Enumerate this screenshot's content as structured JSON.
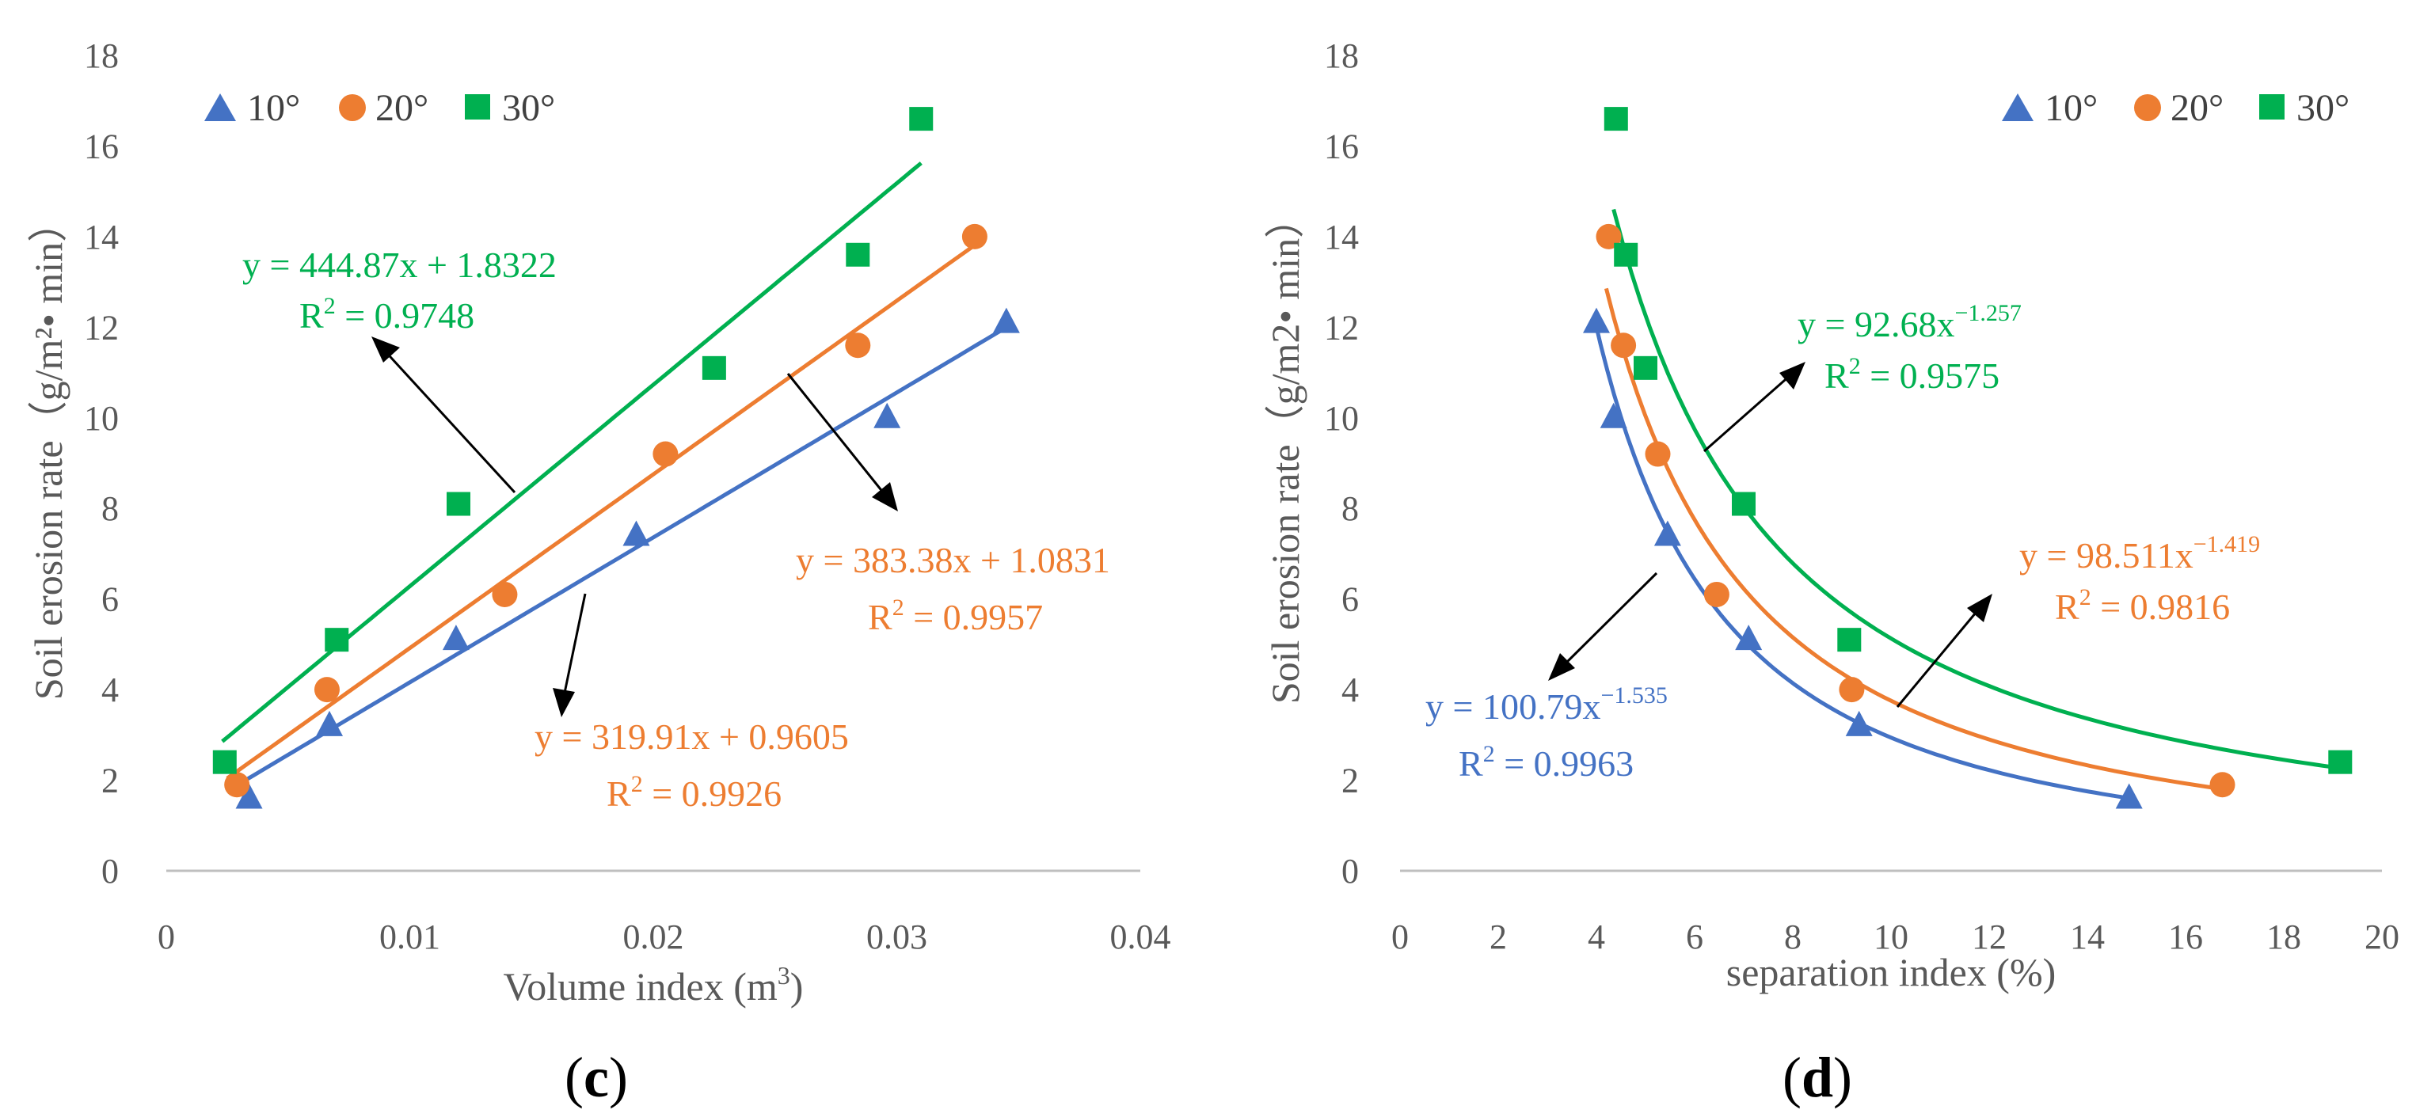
{
  "figure": {
    "colors": {
      "series_10": "#4472c4",
      "series_20": "#ed7d31",
      "series_30": "#00b050",
      "axis": "#bfbfbf",
      "text": "#595959"
    }
  },
  "chart_data": [
    {
      "type": "scatter",
      "panel_label": {
        "open": "(",
        "letter": "c",
        "close": ")"
      },
      "xlabel": "Volume index (m",
      "xlabel_sup": "3",
      "xlabel_close": ")",
      "ylabel": "Soil erosion rate（g/m²• min）",
      "xlim": [
        0,
        0.04
      ],
      "ylim": [
        0,
        18
      ],
      "x_ticks": [
        "0",
        "0.01",
        "0.02",
        "0.03",
        "0.04"
      ],
      "y_ticks": [
        "0",
        "2",
        "4",
        "6",
        "8",
        "10",
        "12",
        "14",
        "16",
        "18"
      ],
      "legend": {
        "position": "top-left",
        "entries": [
          "10°",
          "20°",
          "30°"
        ]
      },
      "series": [
        {
          "name": "10°",
          "marker": "triangle",
          "color": "#4472c4",
          "points": [
            [
              0.0034,
              1.6
            ],
            [
              0.0067,
              3.2
            ],
            [
              0.0119,
              5.1
            ],
            [
              0.0193,
              7.4
            ],
            [
              0.0296,
              10.0
            ],
            [
              0.0345,
              12.1
            ]
          ],
          "fit": {
            "kind": "linear",
            "a": 319.91,
            "b": 0.9605,
            "x_range": [
              0.0028,
              0.0345
            ]
          },
          "equation": "y = 319.91x + 0.9605",
          "r2_prefix": "R",
          "r2_sup": "2",
          "r2_value": " = 0.9926"
        },
        {
          "name": "20°",
          "marker": "circle",
          "color": "#ed7d31",
          "points": [
            [
              0.0029,
              1.9
            ],
            [
              0.0066,
              4.0
            ],
            [
              0.0139,
              6.1
            ],
            [
              0.0205,
              9.2
            ],
            [
              0.0284,
              11.6
            ],
            [
              0.0332,
              14.0
            ]
          ],
          "fit": {
            "kind": "linear",
            "a": 383.38,
            "b": 1.0831,
            "x_range": [
              0.0025,
              0.0332
            ]
          },
          "equation": "y = 383.38x + 1.0831",
          "r2_prefix": "R",
          "r2_sup": "2",
          "r2_value": " = 0.9957"
        },
        {
          "name": "30°",
          "marker": "square",
          "color": "#00b050",
          "points": [
            [
              0.0024,
              2.4
            ],
            [
              0.007,
              5.1
            ],
            [
              0.012,
              8.1
            ],
            [
              0.0225,
              11.1
            ],
            [
              0.0284,
              13.6
            ],
            [
              0.031,
              16.6
            ]
          ],
          "fit": {
            "kind": "linear",
            "a": 444.87,
            "b": 1.8322,
            "x_range": [
              0.0023,
              0.031
            ]
          },
          "equation": "y = 444.87x + 1.8322",
          "r2_prefix": "R",
          "r2_sup": "2",
          "r2_value": " = 0.9748"
        }
      ]
    },
    {
      "type": "scatter",
      "panel_label": {
        "open": "(",
        "letter": "d",
        "close": ")"
      },
      "xlabel": "separation index (%)",
      "ylabel": "Soil erosion rate（g/m2• min）",
      "xlim": [
        0,
        20
      ],
      "ylim": [
        0,
        18
      ],
      "x_ticks": [
        "0",
        "2",
        "4",
        "6",
        "8",
        "10",
        "12",
        "14",
        "16",
        "18",
        "20"
      ],
      "y_ticks": [
        "0",
        "2",
        "4",
        "6",
        "8",
        "10",
        "12",
        "14",
        "16",
        "18"
      ],
      "legend": {
        "position": "top-right",
        "entries": [
          "10°",
          "20°",
          "30°"
        ]
      },
      "series": [
        {
          "name": "10°",
          "marker": "triangle",
          "color": "#4472c4",
          "points": [
            [
              4.0,
              12.1
            ],
            [
              4.35,
              10.0
            ],
            [
              5.45,
              7.4
            ],
            [
              7.1,
              5.1
            ],
            [
              9.35,
              3.2
            ],
            [
              14.85,
              1.6
            ]
          ],
          "fit": {
            "kind": "power",
            "a": 100.79,
            "b": -1.535,
            "x_range": [
              3.95,
              14.85
            ]
          },
          "equation": "y = 100.79x",
          "equation_sup": "−1.535",
          "r2_prefix": "R",
          "r2_sup": "2",
          "r2_value": " = 0.9963"
        },
        {
          "name": "20°",
          "marker": "circle",
          "color": "#ed7d31",
          "points": [
            [
              4.25,
              14.0
            ],
            [
              4.55,
              11.6
            ],
            [
              5.25,
              9.2
            ],
            [
              6.45,
              6.1
            ],
            [
              9.2,
              4.0
            ],
            [
              16.75,
              1.9
            ]
          ],
          "fit": {
            "kind": "power",
            "a": 98.511,
            "b": -1.419,
            "x_range": [
              4.2,
              16.75
            ]
          },
          "equation": "y = 98.511x",
          "equation_sup": "−1.419",
          "r2_prefix": "R",
          "r2_sup": "2",
          "r2_value": " = 0.9816"
        },
        {
          "name": "30°",
          "marker": "square",
          "color": "#00b050",
          "points": [
            [
              4.4,
              16.6
            ],
            [
              4.6,
              13.6
            ],
            [
              5.0,
              11.1
            ],
            [
              7.0,
              8.1
            ],
            [
              9.15,
              5.1
            ],
            [
              19.15,
              2.4
            ]
          ],
          "fit": {
            "kind": "power",
            "a": 92.68,
            "b": -1.257,
            "x_range": [
              4.35,
              19.15
            ]
          },
          "equation": "y = 92.68x",
          "equation_sup": "−1.257",
          "r2_prefix": "R",
          "r2_sup": "2",
          "r2_value": " = 0.9575"
        }
      ]
    }
  ]
}
